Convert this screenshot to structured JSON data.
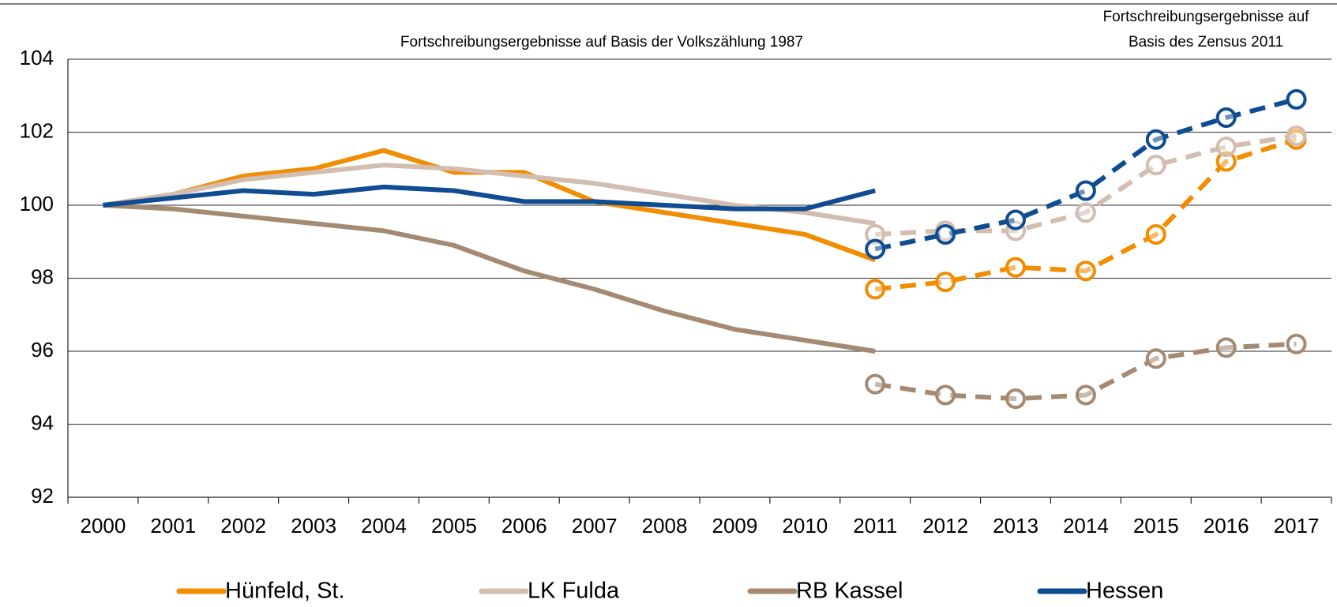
{
  "chart_data": {
    "type": "line",
    "annotations": [
      "Fortschreibungsergebnisse auf Basis der Volkszählung 1987"
    ],
    "census_annotation": [
      "Fortschreibungsergebnisse auf",
      "Basis des Zensus 2011"
    ],
    "categories": [
      "2000",
      "2001",
      "2002",
      "2003",
      "2004",
      "2005",
      "2006",
      "2007",
      "2008",
      "2009",
      "2010",
      "2011",
      "2012",
      "2013",
      "2014",
      "2015",
      "2016",
      "2017"
    ],
    "ylim": [
      92,
      104
    ],
    "yticks": [
      92,
      94,
      96,
      98,
      100,
      102,
      104
    ],
    "grid": true,
    "series": [
      {
        "name": "Hünfeld, St.",
        "color": "#f28c00",
        "values": [
          100,
          100.3,
          100.8,
          101.0,
          101.5,
          100.9,
          100.9,
          100.1,
          99.8,
          99.5,
          99.2,
          98.5,
          null,
          null,
          null,
          null,
          null,
          null
        ],
        "census_values": [
          null,
          null,
          null,
          null,
          null,
          null,
          null,
          null,
          null,
          null,
          null,
          97.7,
          97.9,
          98.3,
          98.2,
          99.2,
          101.2,
          101.8
        ]
      },
      {
        "name": "LK Fulda",
        "color": "#d3bcb0",
        "values": [
          100,
          100.3,
          100.7,
          100.9,
          101.1,
          101.0,
          100.8,
          100.6,
          100.3,
          100.0,
          99.8,
          99.5,
          null,
          null,
          null,
          null,
          null,
          null
        ],
        "census_values": [
          null,
          null,
          null,
          null,
          null,
          null,
          null,
          null,
          null,
          null,
          null,
          99.2,
          99.3,
          99.3,
          99.8,
          101.1,
          101.6,
          101.9
        ]
      },
      {
        "name": "RB Kassel",
        "color": "#a58a73",
        "values": [
          100,
          99.9,
          99.7,
          99.5,
          99.3,
          98.9,
          98.2,
          97.7,
          97.1,
          96.6,
          96.3,
          96.0,
          null,
          null,
          null,
          null,
          null,
          null
        ],
        "census_values": [
          null,
          null,
          null,
          null,
          null,
          null,
          null,
          null,
          null,
          null,
          null,
          95.1,
          94.8,
          94.7,
          94.8,
          95.8,
          96.1,
          96.2
        ]
      },
      {
        "name": "Hessen",
        "color": "#0f4c92",
        "values": [
          100,
          100.2,
          100.4,
          100.3,
          100.5,
          100.4,
          100.1,
          100.1,
          100.0,
          99.9,
          99.9,
          100.4,
          null,
          null,
          null,
          null,
          null,
          null
        ],
        "census_values": [
          null,
          null,
          null,
          null,
          null,
          null,
          null,
          null,
          null,
          null,
          null,
          98.8,
          99.2,
          99.6,
          100.4,
          101.8,
          102.4,
          102.9
        ]
      }
    ]
  }
}
